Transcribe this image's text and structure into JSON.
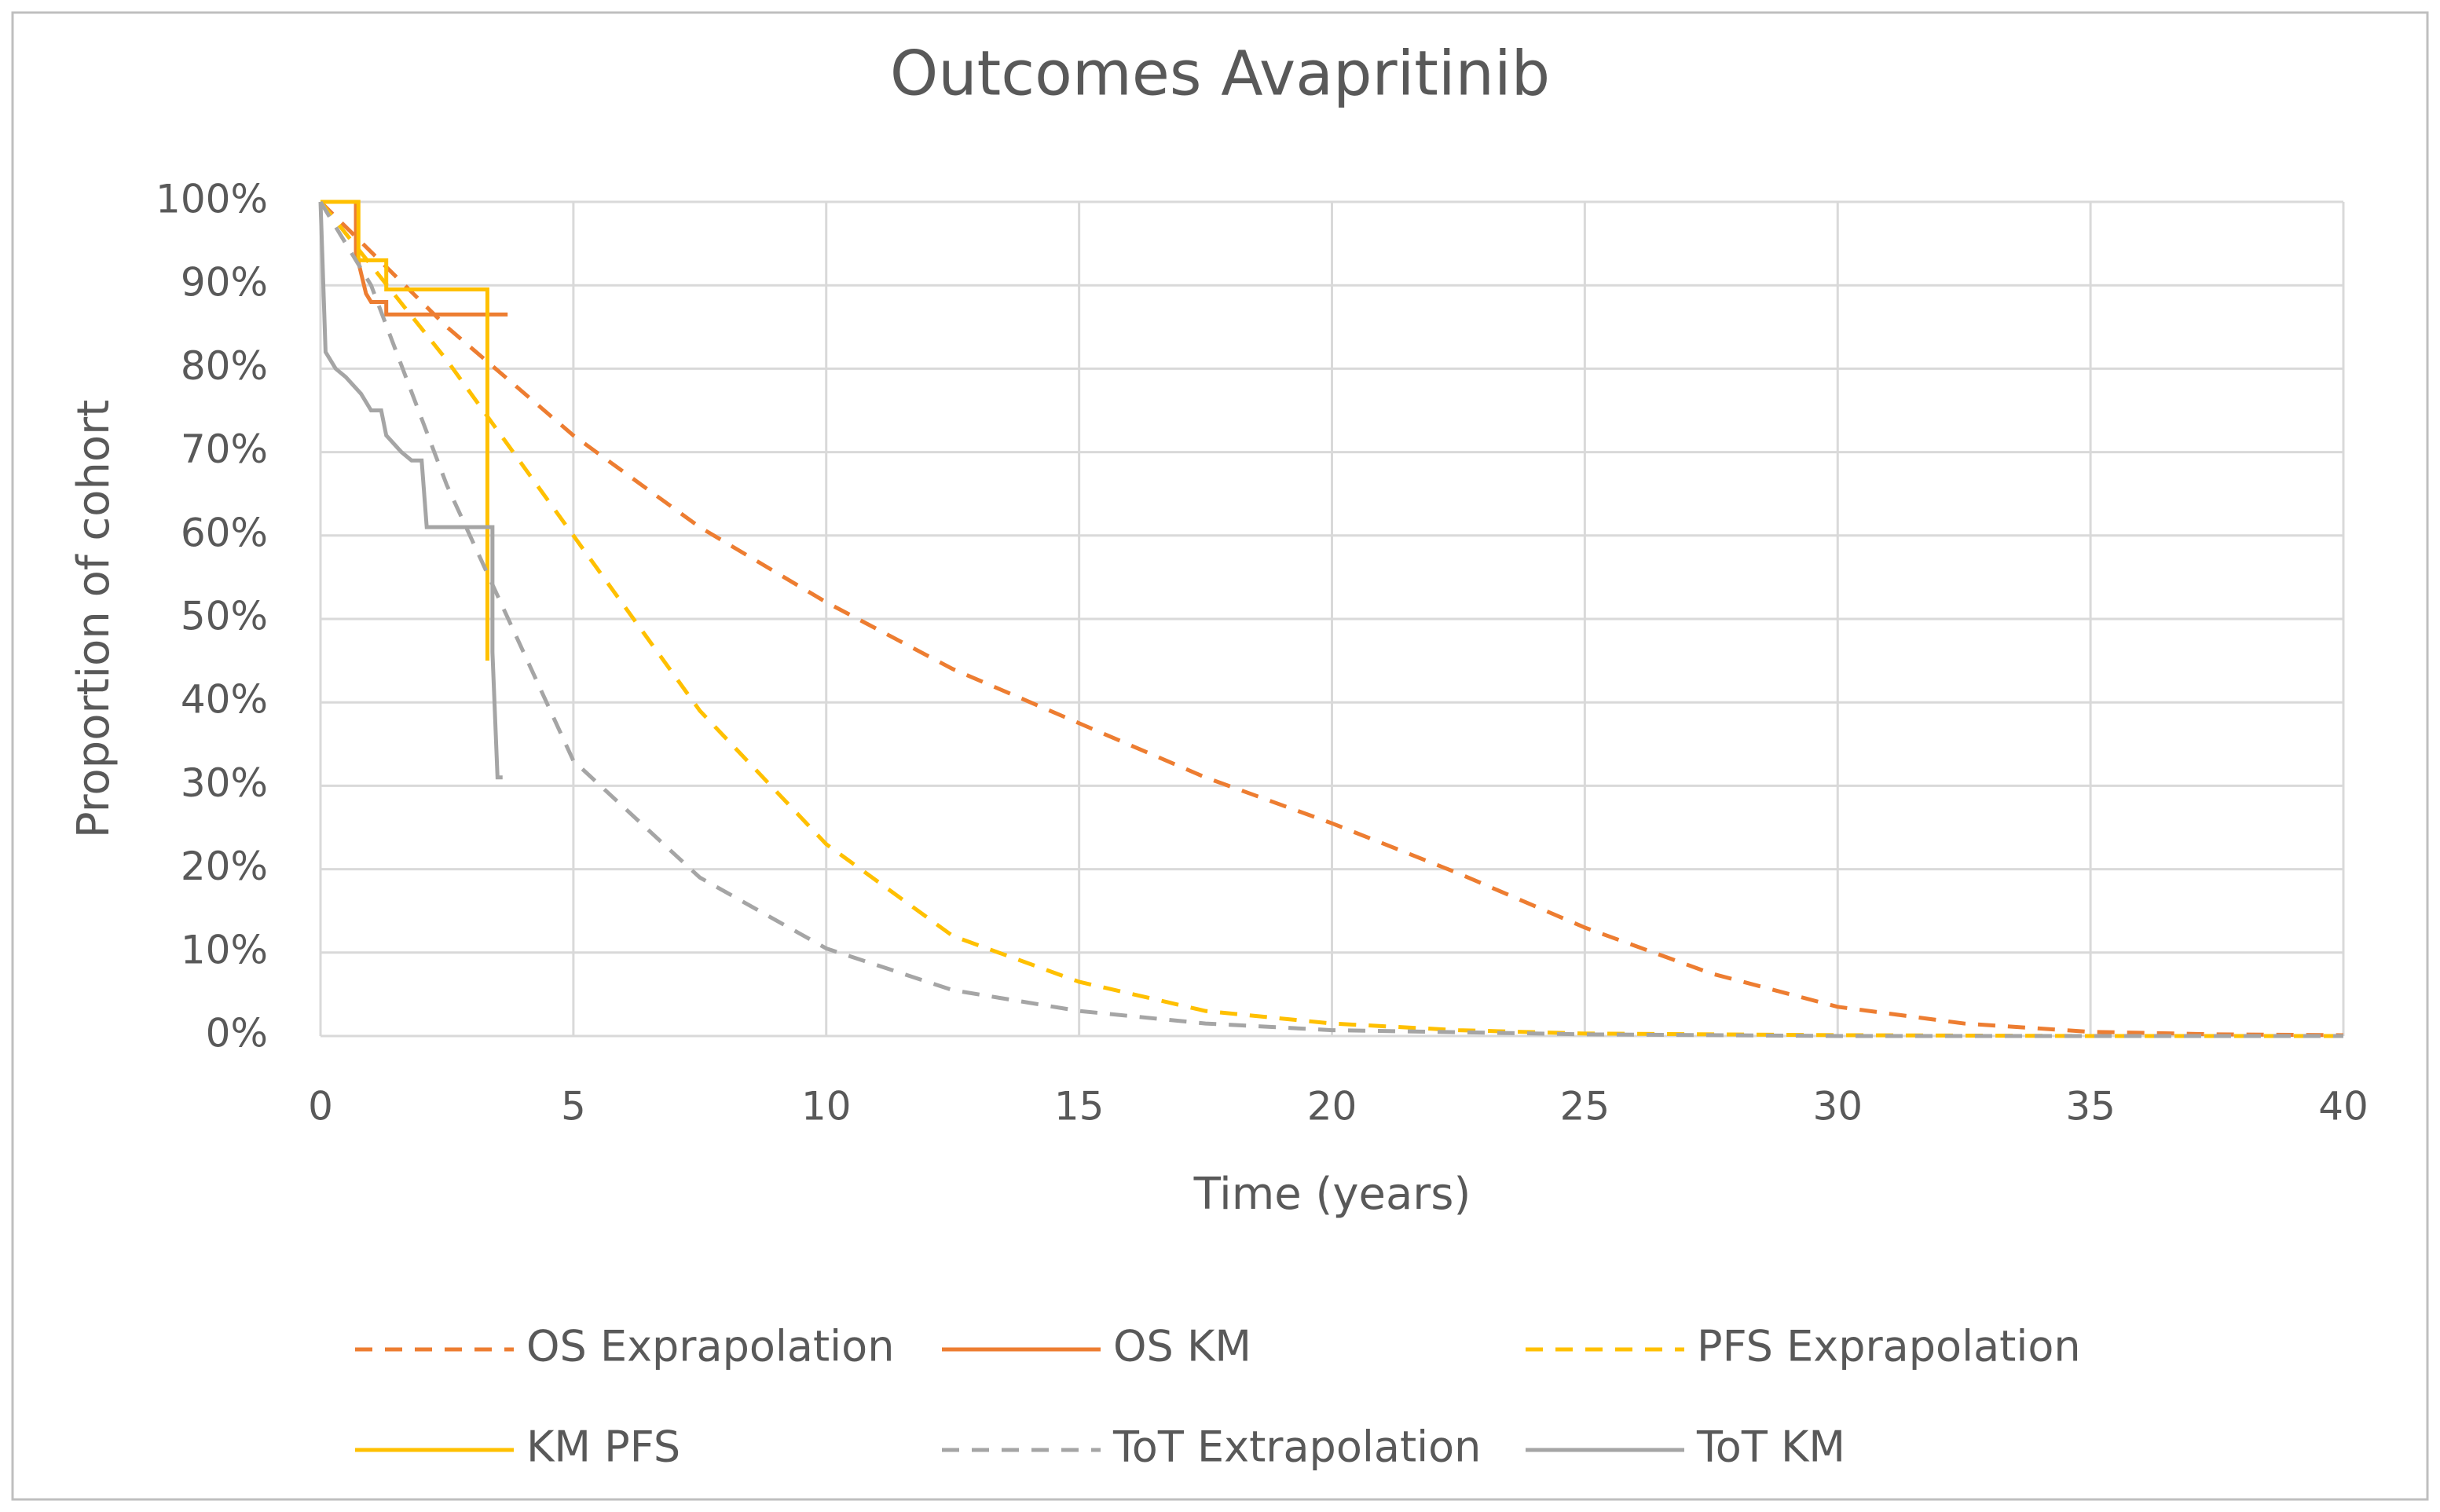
{
  "chart_data": {
    "type": "line",
    "title": "Outcomes Avapritinib",
    "x_label": "Time (years)",
    "y_label": "Proportion of cohort",
    "xlim": [
      0,
      40
    ],
    "xticks": [
      0,
      5,
      10,
      15,
      20,
      25,
      30,
      35,
      40
    ],
    "ylim": [
      0,
      100
    ],
    "yticks": [
      {
        "value": 0,
        "label": "0%"
      },
      {
        "value": 10,
        "label": "10%"
      },
      {
        "value": 20,
        "label": "20%"
      },
      {
        "value": 30,
        "label": "30%"
      },
      {
        "value": 40,
        "label": "40%"
      },
      {
        "value": 50,
        "label": "50%"
      },
      {
        "value": 60,
        "label": "60%"
      },
      {
        "value": 70,
        "label": "70%"
      },
      {
        "value": 80,
        "label": "80%"
      },
      {
        "value": 90,
        "label": "90%"
      },
      {
        "value": 100,
        "label": "100%"
      }
    ],
    "grid": true,
    "legend": "bottom",
    "series": [
      {
        "name": "OS Exprapolation",
        "color": "#ED7D31",
        "dashed": true,
        "x": [
          0,
          2.5,
          5,
          7.5,
          10,
          12.5,
          15,
          17.5,
          20,
          22.5,
          25,
          27.5,
          30,
          32.5,
          35,
          37.5,
          40
        ],
        "values": [
          100,
          85,
          72,
          61,
          52,
          44,
          37.5,
          31,
          25.5,
          19.5,
          13,
          7.5,
          3.5,
          1.5,
          0.5,
          0.2,
          0.1
        ]
      },
      {
        "name": "OS KM",
        "color": "#ED7D31",
        "dashed": false,
        "x": [
          0,
          0.7,
          0.7,
          0.9,
          1,
          1.3,
          1.3,
          3.7
        ],
        "values": [
          100,
          100,
          94,
          89,
          88,
          88,
          86.5,
          86.5
        ]
      },
      {
        "name": "PFS Exprapolation",
        "color": "#FFC000",
        "dashed": true,
        "x": [
          0,
          2.5,
          5,
          7.5,
          10,
          12.5,
          15,
          17.5,
          20,
          22.5,
          25,
          30,
          35,
          40
        ],
        "values": [
          100,
          81,
          60,
          39,
          23,
          12,
          6.5,
          3,
          1.5,
          0.7,
          0.3,
          0.1,
          0,
          0
        ]
      },
      {
        "name": "KM PFS",
        "color": "#FFC000",
        "dashed": false,
        "x": [
          0,
          0.75,
          0.75,
          1.3,
          1.3,
          3.3,
          3.3
        ],
        "values": [
          100,
          100,
          93,
          93,
          89.5,
          89.5,
          45
        ]
      },
      {
        "name": "ToT Extrapolation",
        "color": "#A5A5A5",
        "dashed": true,
        "x": [
          0,
          1,
          2.5,
          5,
          7.5,
          10,
          12.5,
          15,
          17.5,
          20,
          25,
          30,
          40
        ],
        "values": [
          100,
          90,
          66,
          33,
          19,
          10.5,
          5.5,
          3,
          1.5,
          0.7,
          0.2,
          0,
          0
        ]
      },
      {
        "name": "ToT KM",
        "color": "#A5A5A5",
        "dashed": false,
        "x": [
          0,
          0.1,
          0.3,
          0.5,
          0.8,
          1,
          1.2,
          1.3,
          1.6,
          1.8,
          2,
          2.1,
          3.4,
          3.4,
          3.5,
          3.6
        ],
        "values": [
          100,
          82,
          80,
          79,
          77,
          75,
          75,
          72,
          70,
          69,
          69,
          61,
          61,
          46,
          31,
          31
        ]
      }
    ]
  }
}
